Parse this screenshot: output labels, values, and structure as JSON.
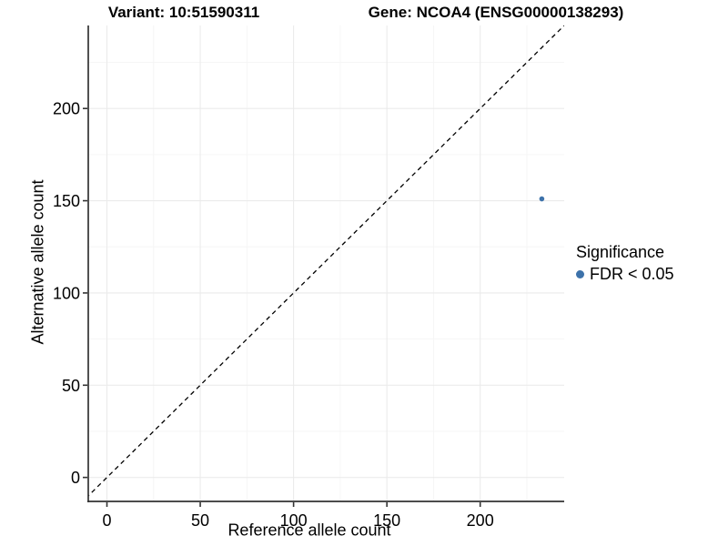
{
  "chart_data": {
    "type": "scatter",
    "titles": [
      "Variant: 10:51590311",
      "Gene: NCOA4 (ENSG00000138293)"
    ],
    "xlabel": "Reference allele count",
    "ylabel": "Alternative allele count",
    "xlim": [
      -10,
      245
    ],
    "ylim": [
      -13,
      245
    ],
    "x_ticks": [
      0,
      50,
      100,
      150,
      200
    ],
    "y_ticks": [
      0,
      50,
      100,
      150,
      200
    ],
    "x_minor_gridlines": [
      25,
      75,
      125,
      175,
      225
    ],
    "y_minor_gridlines": [
      25,
      75,
      125,
      175,
      225
    ],
    "grid": "major+minor",
    "legend_position": "right",
    "identity_line": {
      "slope": 1,
      "intercept": 0,
      "linestyle": "dashed",
      "color": "#000000"
    },
    "series": [
      {
        "name": "FDR < 0.05",
        "color": "#3d72aa",
        "points": [
          {
            "x": 233,
            "y": 151
          }
        ]
      }
    ],
    "legend": {
      "title": "Significance",
      "items": [
        {
          "label": "FDR < 0.05",
          "color": "#3d72aa",
          "marker": "circle"
        }
      ]
    },
    "style": {
      "background": "#ffffff",
      "grid_major": "#ebebeb",
      "grid_minor": "#f5f5f5",
      "axis_color": "#333333",
      "text_color": "#000000",
      "point_radius": 2.8,
      "tick_font_px": 18
    }
  }
}
